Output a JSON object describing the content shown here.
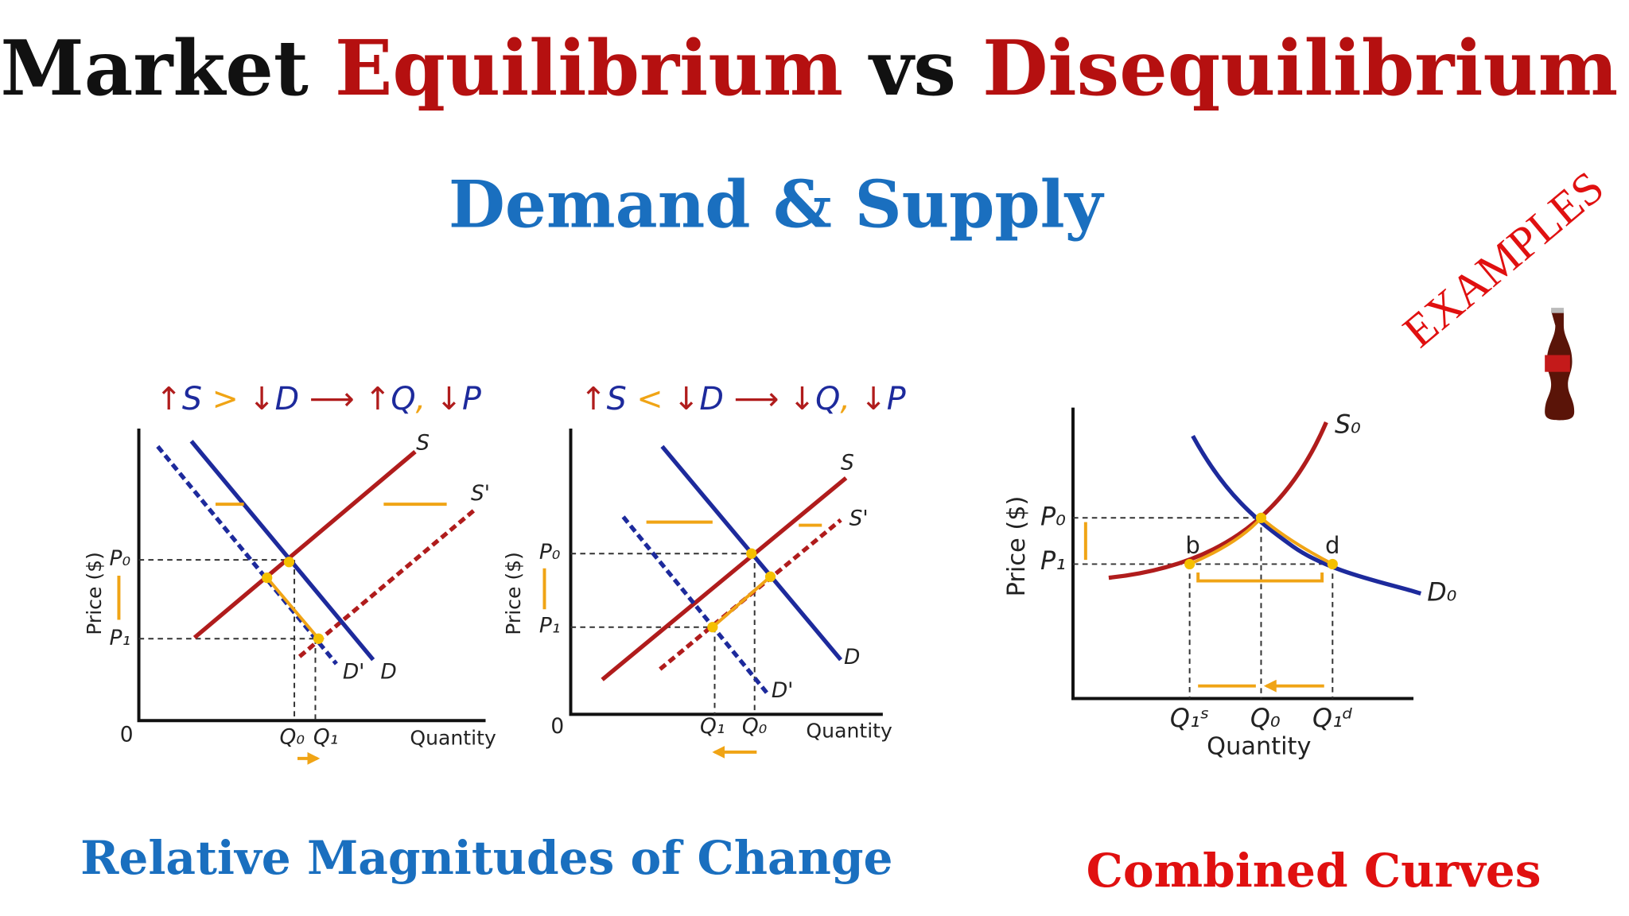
{
  "title": [
    "Market",
    "Equilibrium",
    "vs",
    "Disequilibrium"
  ],
  "subtitle": "Demand & Supply",
  "badge": "EXAMPLES",
  "captions": [
    "Relative Magnitudes of Change",
    "Combined Curves"
  ],
  "diagrams": [
    {
      "header": [
        "↑",
        "S",
        ">",
        "↓",
        "D",
        "⟶",
        "↑",
        "Q",
        ",",
        "↓",
        "P"
      ],
      "labels": [
        "S",
        "S'",
        "D",
        "D'",
        "P₀",
        "P₁",
        "Q₀",
        "Q₁",
        "0",
        "Quantity",
        "Price ($)"
      ]
    },
    {
      "header": [
        "↑",
        "S",
        "<",
        "↓",
        "D",
        "⟶",
        "↓",
        "Q",
        ",",
        "↓",
        "P"
      ],
      "labels": [
        "S",
        "S'",
        "D",
        "D'",
        "P₀",
        "P₁",
        "Q₁",
        "Q₀",
        "0",
        "Quantity",
        "Price ($)"
      ]
    },
    {
      "labels": [
        "S₀",
        "D₀",
        "P₀",
        "P₁",
        "b",
        "d",
        "Q₁ˢ",
        "Q₀",
        "Q₁ᵈ",
        "Quantity",
        "Price ($)"
      ]
    }
  ]
}
